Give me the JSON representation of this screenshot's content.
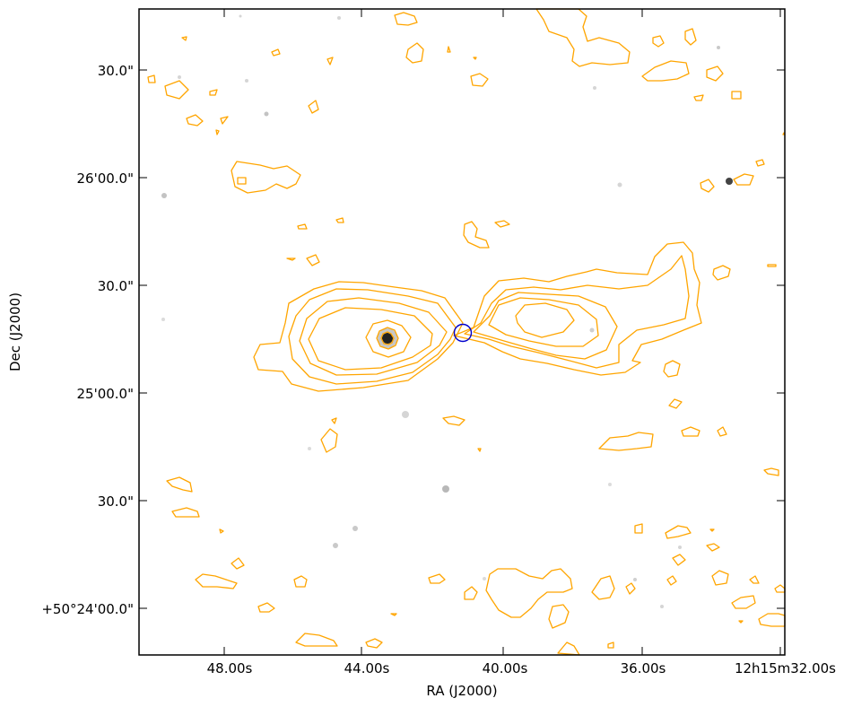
{
  "figure": {
    "xlabel": "RA (J2000)",
    "ylabel": "Dec (J2000)",
    "contour_color": "#ffa500",
    "marker_color": "#0000cc",
    "background_color": "#ffffff",
    "frame_color": "#000000"
  },
  "chart_data": {
    "type": "contour",
    "xlabel": "RA (J2000)",
    "ylabel": "Dec (J2000)",
    "x_ticks": [
      "48.00s",
      "44.00s",
      "40.00s",
      "36.00s",
      "12h15m32.00s"
    ],
    "y_ticks": [
      "30.0\"",
      "26'00.0\"",
      "30.0\"",
      "25'00.0\"",
      "30.0\"",
      "+50°24'00.0\""
    ],
    "grid": false,
    "legend": "none"
  }
}
